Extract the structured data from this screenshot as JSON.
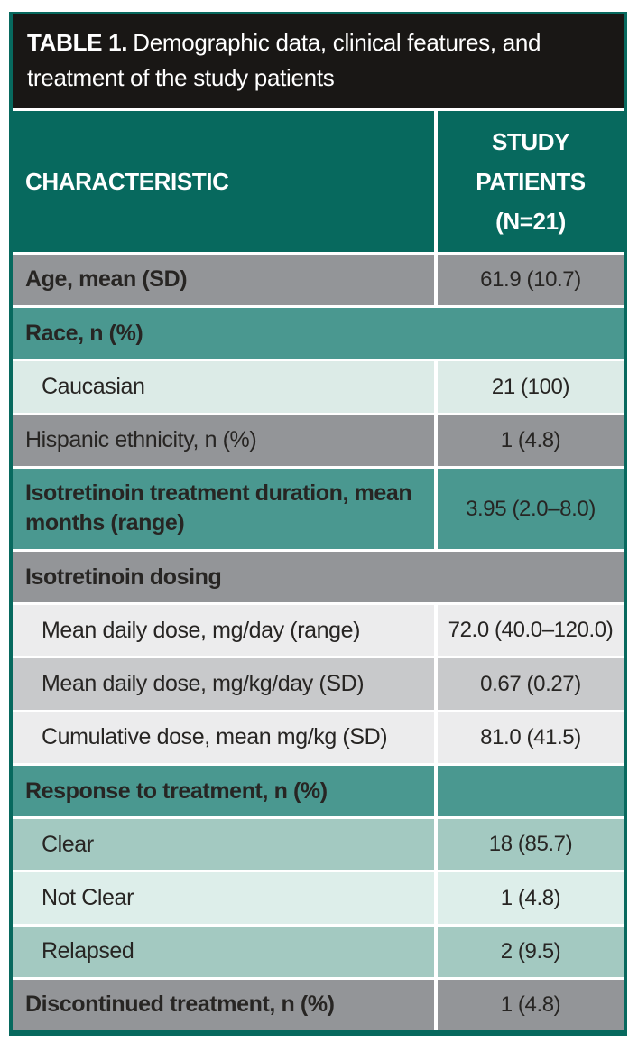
{
  "title": {
    "prefix": "TABLE 1.",
    "text": "Demographic data, clinical features, and treatment of the study patients"
  },
  "header": {
    "characteristic": "CHARACTERISTIC",
    "patients": "STUDY PATIENTS (N=21)"
  },
  "colors": {
    "border": "#07695e",
    "title_bg": "#191715",
    "header_teal": "#07695e",
    "section_teal": "#4a9890",
    "row_teal_mid": "#a3c9c1",
    "row_teal_pale": "#dcebe7",
    "row_gray_dark": "#939598",
    "row_gray_mid": "#c8c9cb",
    "row_gray_light": "#ececed",
    "text_dark": "#272523",
    "text_light": "#ffffff"
  },
  "chart_data": {
    "type": "table",
    "title": "TABLE 1. Demographic data, clinical features, and treatment of the study patients",
    "columns": [
      "CHARACTERISTIC",
      "STUDY PATIENTS (N=21)"
    ]
  },
  "rows": [
    {
      "label": "Age, mean (SD)",
      "value": "61.9 (10.7)",
      "style": "gray",
      "bold": true,
      "indent": false,
      "span": false
    },
    {
      "label": "Race, n (%)",
      "value": "",
      "style": "teal",
      "bold": true,
      "indent": false,
      "span": true
    },
    {
      "label": "Caucasian",
      "value": "21 (100)",
      "style": "paleteal",
      "bold": false,
      "indent": true,
      "span": false
    },
    {
      "label": "Hispanic ethnicity, n (%)",
      "value": "1 (4.8)",
      "style": "gray",
      "bold": false,
      "indent": false,
      "span": false
    },
    {
      "label": "Isotretinoin treatment duration, mean months (range)",
      "value": "3.95 (2.0–8.0)",
      "style": "teal",
      "bold": true,
      "indent": false,
      "span": false
    },
    {
      "label": "Isotretinoin dosing",
      "value": "",
      "style": "gray",
      "bold": true,
      "indent": false,
      "span": true
    },
    {
      "label": "Mean daily dose, mg/day (range)",
      "value": "72.0 (40.0–120.0)",
      "style": "lightgray",
      "bold": false,
      "indent": true,
      "span": false
    },
    {
      "label": "Mean daily dose, mg/kg/day (SD)",
      "value": "0.67 (0.27)",
      "style": "midgray",
      "bold": false,
      "indent": true,
      "span": false
    },
    {
      "label": "Cumulative dose, mean mg/kg (SD)",
      "value": "81.0 (41.5)",
      "style": "lightgray",
      "bold": false,
      "indent": true,
      "span": false
    },
    {
      "label": "Response to treatment, n (%)",
      "value": "",
      "style": "teal",
      "bold": true,
      "indent": false,
      "span": false
    },
    {
      "label": "Clear",
      "value": "18 (85.7)",
      "style": "midteal",
      "bold": false,
      "indent": true,
      "span": false
    },
    {
      "label": "Not Clear",
      "value": "1 (4.8)",
      "style": "paleteal2",
      "bold": false,
      "indent": true,
      "span": false
    },
    {
      "label": "Relapsed",
      "value": "2 (9.5)",
      "style": "midteal",
      "bold": false,
      "indent": true,
      "span": false
    },
    {
      "label": "Discontinued treatment, n (%)",
      "value": "1 (4.8)",
      "style": "gray",
      "bold": true,
      "indent": false,
      "span": false
    }
  ]
}
